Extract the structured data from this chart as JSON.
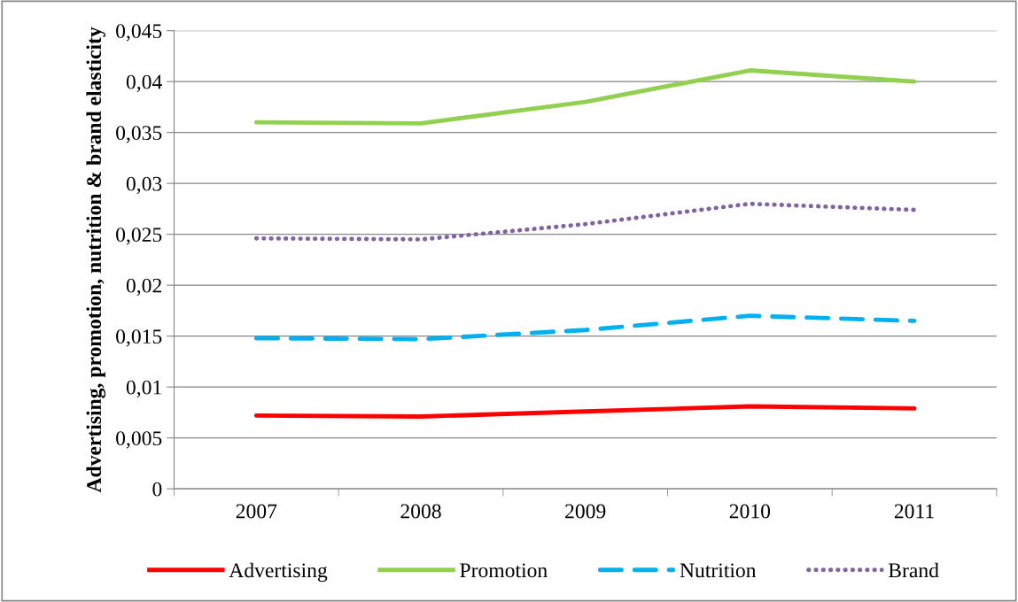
{
  "chart_data": {
    "type": "line",
    "ylabel": "Advertising, promotion, nutrition & brand elasticity",
    "categories": [
      "2007",
      "2008",
      "2009",
      "2010",
      "2011"
    ],
    "series": [
      {
        "name": "Advertising",
        "color": "#ff0000",
        "line_style": "solid",
        "values": [
          0.0072,
          0.0071,
          0.0076,
          0.0081,
          0.0079
        ]
      },
      {
        "name": "Promotion",
        "color": "#92d050",
        "line_style": "solid",
        "values": [
          0.036,
          0.0359,
          0.038,
          0.0411,
          0.04
        ]
      },
      {
        "name": "Nutrition",
        "color": "#00b0f0",
        "line_style": "dashed",
        "values": [
          0.0148,
          0.0147,
          0.0156,
          0.017,
          0.0165
        ]
      },
      {
        "name": "Brand",
        "color": "#8064a2",
        "line_style": "dotted",
        "values": [
          0.0246,
          0.0245,
          0.026,
          0.028,
          0.0274
        ]
      }
    ],
    "ylim": [
      0,
      0.045
    ],
    "yticks": [
      0,
      {
        "value": 0.005,
        "label": "0,005"
      },
      {
        "value": 0.01,
        "label": "0,01"
      },
      {
        "value": 0.015,
        "label": "0,015"
      },
      {
        "value": 0.02,
        "label": "0,02"
      },
      {
        "value": 0.025,
        "label": "0,025"
      },
      {
        "value": 0.03,
        "label": "0,03"
      },
      {
        "value": 0.035,
        "label": "0,035"
      },
      {
        "value": 0.04,
        "label": "0,04"
      },
      {
        "value": 0.045,
        "label": "0,045"
      }
    ],
    "grid": "y",
    "legend": "bottom",
    "marker": "none"
  }
}
